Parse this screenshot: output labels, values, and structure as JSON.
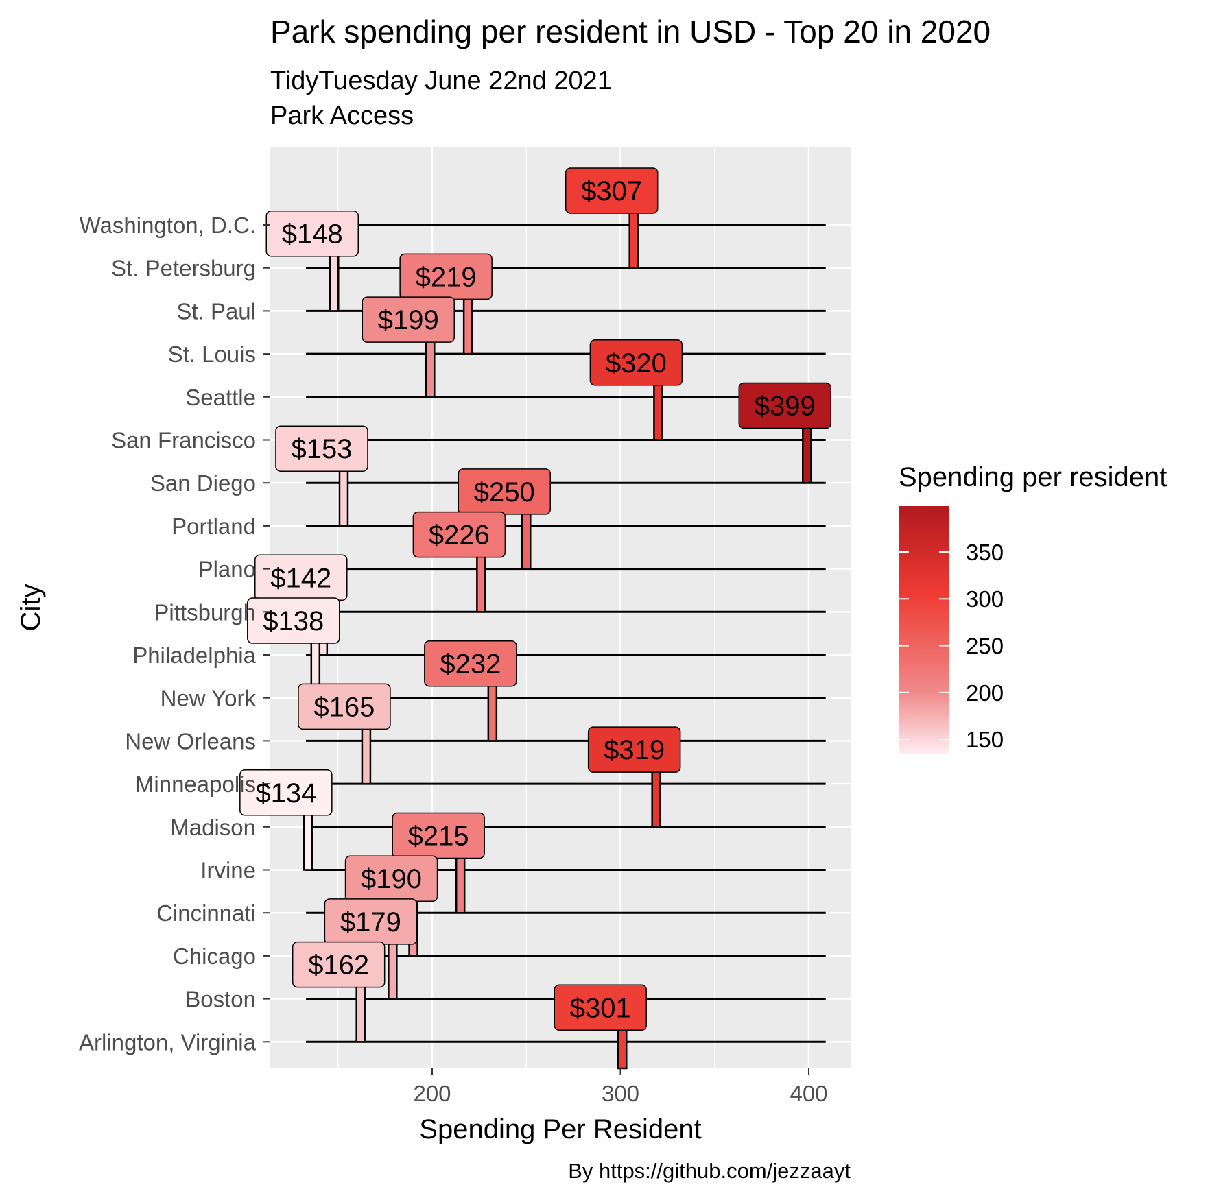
{
  "chart_data": {
    "type": "bar",
    "title": "Park spending per resident in USD - Top 20 in 2020",
    "subtitle_line1": "TidyTuesday June 22nd 2021",
    "subtitle_line2": "Park Access",
    "xlabel": "Spending Per Resident",
    "ylabel": "City",
    "caption": "By https://github.com/jezzaayt",
    "xlim": [
      120,
      420
    ],
    "x_ticks": [
      200,
      300,
      400
    ],
    "x_tick_labels": [
      "200",
      "300",
      "400"
    ],
    "grid": true,
    "legend": {
      "title": "Spending per resident",
      "placement": "right",
      "ticks": [
        150,
        200,
        250,
        300,
        350
      ],
      "tick_labels": [
        "150",
        "200",
        "250",
        "300",
        "350"
      ],
      "min": 134,
      "max": 399
    },
    "colors": {
      "low": "#ffeef2",
      "mid": "#ee3b33",
      "high": "#b2191f",
      "panel": "#ebebeb",
      "grid": "#ffffff"
    },
    "categories": [
      "Washington, D.C.",
      "St. Petersburg",
      "St. Paul",
      "St. Louis",
      "Seattle",
      "San Francisco",
      "San Diego",
      "Portland",
      "Plano",
      "Pittsburgh",
      "Philadelphia",
      "New York",
      "New Orleans",
      "Minneapolis",
      "Madison",
      "Irvine",
      "Cincinnati",
      "Chicago",
      "Boston",
      "Arlington, Virginia"
    ],
    "values": [
      307,
      148,
      219,
      199,
      320,
      399,
      153,
      250,
      226,
      142,
      138,
      232,
      165,
      319,
      134,
      215,
      190,
      179,
      162,
      301
    ],
    "labels": [
      "$307",
      "$148",
      "$219",
      "$199",
      "$320",
      "$399",
      "$153",
      "$250",
      "$226",
      "$142",
      "$138",
      "$232",
      "$165",
      "$319",
      "$134",
      "$215",
      "$190",
      "$179",
      "$162",
      "$301"
    ]
  }
}
